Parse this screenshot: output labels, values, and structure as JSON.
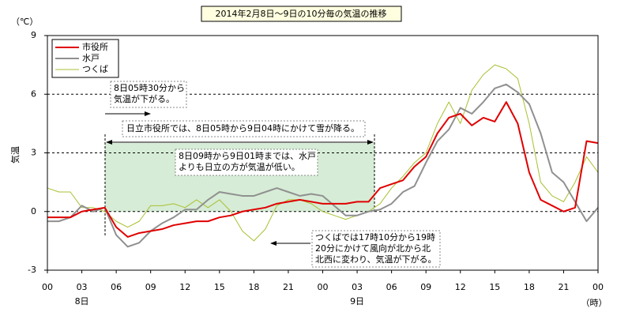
{
  "chart_data": {
    "type": "line",
    "title": "2014年2月8日～9日の10分毎の気温の推移",
    "y_unit": "（℃）",
    "y_label": "気温",
    "x_unit": "（時）",
    "x": [
      0,
      1,
      2,
      3,
      4,
      5,
      6,
      7,
      8,
      9,
      10,
      11,
      12,
      13,
      14,
      15,
      16,
      17,
      18,
      19,
      20,
      21,
      22,
      23,
      24,
      25,
      26,
      27,
      28,
      29,
      30,
      31,
      32,
      33,
      34,
      35,
      36,
      37,
      38,
      39,
      40,
      41,
      42,
      43,
      44,
      45,
      46,
      47,
      48
    ],
    "series": [
      {
        "name": "市役所",
        "color": "#e00000",
        "width": 2,
        "values": [
          -0.3,
          -0.3,
          -0.3,
          0,
          0.1,
          0.2,
          -0.8,
          -1.3,
          -1.1,
          -1.0,
          -0.9,
          -0.7,
          -0.6,
          -0.5,
          -0.5,
          -0.3,
          -0.2,
          0,
          0.1,
          0.2,
          0.4,
          0.5,
          0.6,
          0.5,
          0.4,
          0.4,
          0.4,
          0.5,
          0.5,
          1.2,
          1.4,
          1.6,
          2.3,
          2.8,
          4.0,
          4.8,
          5.0,
          4.4,
          4.8,
          4.6,
          5.6,
          4.5,
          2.0,
          0.6,
          0.3,
          0,
          0.2,
          3.6,
          3.5
        ]
      },
      {
        "name": "水戸",
        "color": "#909090",
        "width": 2,
        "values": [
          -0.5,
          -0.5,
          -0.3,
          0.3,
          0,
          0.2,
          -1.2,
          -1.8,
          -1.6,
          -1.0,
          -0.6,
          -0.3,
          0.1,
          0.1,
          0.6,
          1.0,
          0.9,
          0.8,
          0.8,
          1.0,
          1.2,
          1.0,
          0.8,
          0.9,
          0.8,
          0.3,
          -0.2,
          -0.2,
          0,
          0.1,
          0.4,
          1.0,
          1.3,
          2.5,
          3.6,
          4.2,
          5.3,
          5.0,
          5.6,
          6.3,
          6.5,
          6.1,
          5.5,
          4.0,
          2.0,
          1.5,
          0.5,
          -0.5,
          0.2
        ]
      },
      {
        "name": "つくば",
        "color": "#a8c030",
        "width": 1,
        "values": [
          1.2,
          1.0,
          1.0,
          0.2,
          0.2,
          0,
          -0.5,
          -0.8,
          -0.5,
          0.3,
          0.3,
          0.4,
          0.2,
          0.6,
          0.2,
          0.6,
          0.0,
          -1.0,
          -1.5,
          -0.9,
          0.3,
          0.6,
          0.6,
          0.4,
          0,
          -0.2,
          -0.4,
          -0.2,
          0.0,
          0.4,
          1.2,
          1.8,
          2.5,
          3.0,
          4.5,
          5.6,
          4.5,
          6.2,
          7.0,
          7.5,
          7.3,
          6.8,
          4.5,
          1.5,
          0.8,
          0.5,
          1.5,
          2.8,
          2.0
        ]
      }
    ],
    "xlim": [
      0,
      48
    ],
    "xticks": [
      {
        "value": 0,
        "label": "00"
      },
      {
        "value": 3,
        "label": "03"
      },
      {
        "value": 6,
        "label": "06"
      },
      {
        "value": 9,
        "label": "09"
      },
      {
        "value": 12,
        "label": "12"
      },
      {
        "value": 15,
        "label": "15"
      },
      {
        "value": 18,
        "label": "18"
      },
      {
        "value": 21,
        "label": "21"
      },
      {
        "value": 24,
        "label": "00"
      },
      {
        "value": 27,
        "label": "03"
      },
      {
        "value": 30,
        "label": "06"
      },
      {
        "value": 33,
        "label": "09"
      },
      {
        "value": 36,
        "label": "12"
      },
      {
        "value": 39,
        "label": "15"
      },
      {
        "value": 42,
        "label": "18"
      },
      {
        "value": 45,
        "label": "21"
      },
      {
        "value": 48,
        "label": "00"
      }
    ],
    "day_labels": [
      {
        "value": 3,
        "label": "8日"
      },
      {
        "value": 27,
        "label": "9日"
      }
    ],
    "ylim": [
      -3,
      9
    ],
    "yticks": [
      -3,
      0,
      3,
      6,
      9
    ],
    "grid": true,
    "annotations": [
      {
        "lines": [
          "8日05時30分から",
          "気温が下がる。"
        ]
      },
      {
        "lines": [
          "日立市役所では、8日05時から9日04時にかけて雪が降る。"
        ]
      },
      {
        "lines": [
          "8日09時から9日01時までは、水戸",
          "よりも日立の方が気温が低い。"
        ]
      },
      {
        "lines": [
          "つくばでは17時10分から19時",
          "20分にかけて風向が北から北",
          "北西に変わり、気温が下がる。"
        ]
      }
    ]
  }
}
